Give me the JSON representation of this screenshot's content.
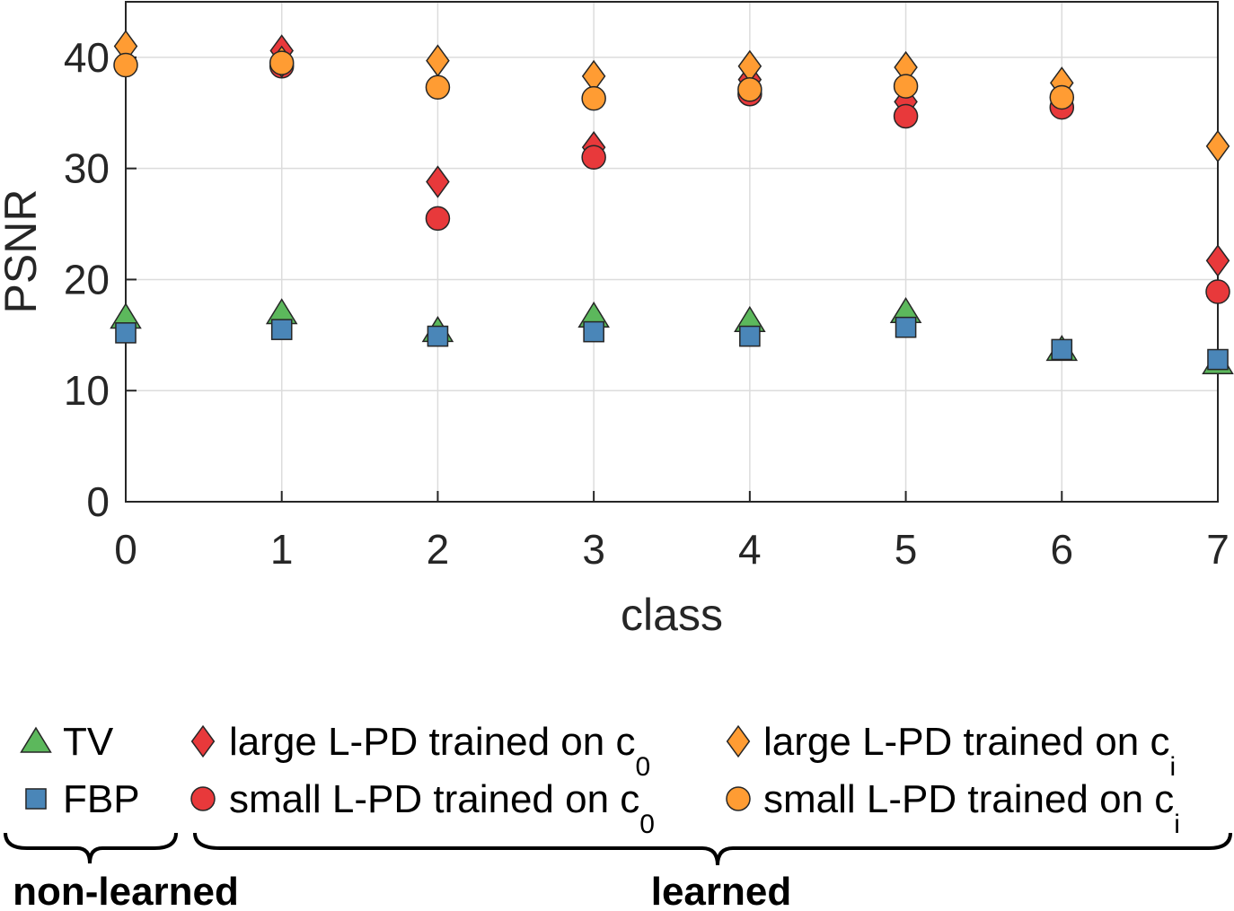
{
  "chart_data": {
    "type": "scatter",
    "xlabel": "class",
    "ylabel": "PSNR",
    "xlim": [
      0,
      7
    ],
    "ylim": [
      0,
      40
    ],
    "x_ticks": [
      "0",
      "1",
      "2",
      "3",
      "4",
      "5",
      "6",
      "7"
    ],
    "y_ticks": [
      "0",
      "10",
      "20",
      "30",
      "40"
    ],
    "grid": true,
    "x": [
      0,
      1,
      2,
      3,
      4,
      5,
      6,
      7
    ],
    "series": [
      {
        "name": "TV",
        "marker": "triangle",
        "color": "#5cb85c",
        "values": [
          16.6,
          17.0,
          15.4,
          16.7,
          16.3,
          17.1,
          13.7,
          12.5
        ]
      },
      {
        "name": "FBP",
        "marker": "square",
        "color": "#4a86b8",
        "values": [
          15.2,
          15.5,
          14.9,
          15.3,
          14.9,
          15.7,
          13.7,
          12.8
        ]
      },
      {
        "name": "large L-PD trained on c",
        "name_sub": "0",
        "marker": "diamond",
        "color": "#e8393b",
        "values": [
          null,
          40.6,
          28.8,
          31.9,
          38.0,
          36.0,
          null,
          21.7
        ]
      },
      {
        "name": "small L-PD trained on c",
        "name_sub": "0",
        "marker": "circle",
        "color": "#e8393b",
        "values": [
          null,
          39.2,
          25.5,
          31.0,
          36.7,
          34.7,
          35.5,
          18.9
        ]
      },
      {
        "name": "large L-PD trained on c",
        "name_sub": "i",
        "marker": "diamond",
        "color": "#ff9c33",
        "values": [
          41.0,
          39.6,
          39.7,
          38.3,
          39.2,
          39.1,
          37.7,
          32.0
        ]
      },
      {
        "name": "small L-PD trained on c",
        "name_sub": "i",
        "marker": "circle",
        "color": "#ff9c33",
        "values": [
          39.3,
          39.5,
          37.3,
          36.3,
          37.1,
          37.4,
          36.4,
          null
        ]
      }
    ],
    "legend_groups": [
      "non-learned",
      "learned"
    ]
  }
}
